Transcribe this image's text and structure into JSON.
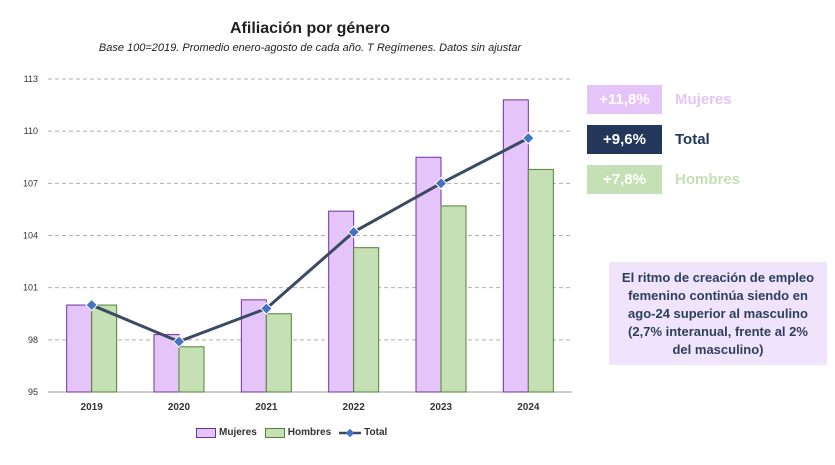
{
  "chart_data": {
    "type": "bar",
    "title": "Afiliación por género",
    "subtitle": "Base 100=2019. Promedio enero-agosto de cada año. T Regímenes. Datos sin ajustar",
    "categories": [
      "2019",
      "2020",
      "2021",
      "2022",
      "2023",
      "2024"
    ],
    "series": [
      {
        "name": "Mujeres",
        "type": "bar",
        "color": "#e5c4f9",
        "values": [
          100.0,
          98.3,
          100.3,
          105.4,
          108.5,
          111.8
        ]
      },
      {
        "name": "Hombres",
        "type": "bar",
        "color": "#c5e0b4",
        "values": [
          100.0,
          97.6,
          99.5,
          103.3,
          105.7,
          107.8
        ]
      },
      {
        "name": "Total",
        "type": "line",
        "color": "#3b4a63",
        "values": [
          100.0,
          97.9,
          99.8,
          104.2,
          107.0,
          109.6
        ]
      }
    ],
    "ylim": [
      95,
      113
    ],
    "yticks": [
      95,
      98,
      101,
      104,
      107,
      110,
      113
    ],
    "grid": true,
    "legend_position": "bottom"
  },
  "badges": [
    {
      "value": "+11,8%",
      "label": "Mujeres",
      "bg": "#e5c4f9",
      "label_color": "#e5c4f9"
    },
    {
      "value": "+9,6%",
      "label": "Total",
      "bg": "#22375a",
      "label_color": "#22375a"
    },
    {
      "value": "+7,8%",
      "label": "Hombres",
      "bg": "#c5e0b4",
      "label_color": "#c5e0b4"
    }
  ],
  "note": "El ritmo de creación de empleo femenino continúa siendo en ago-24 superior al masculino (2,7% interanual, frente al 2% del masculino)"
}
